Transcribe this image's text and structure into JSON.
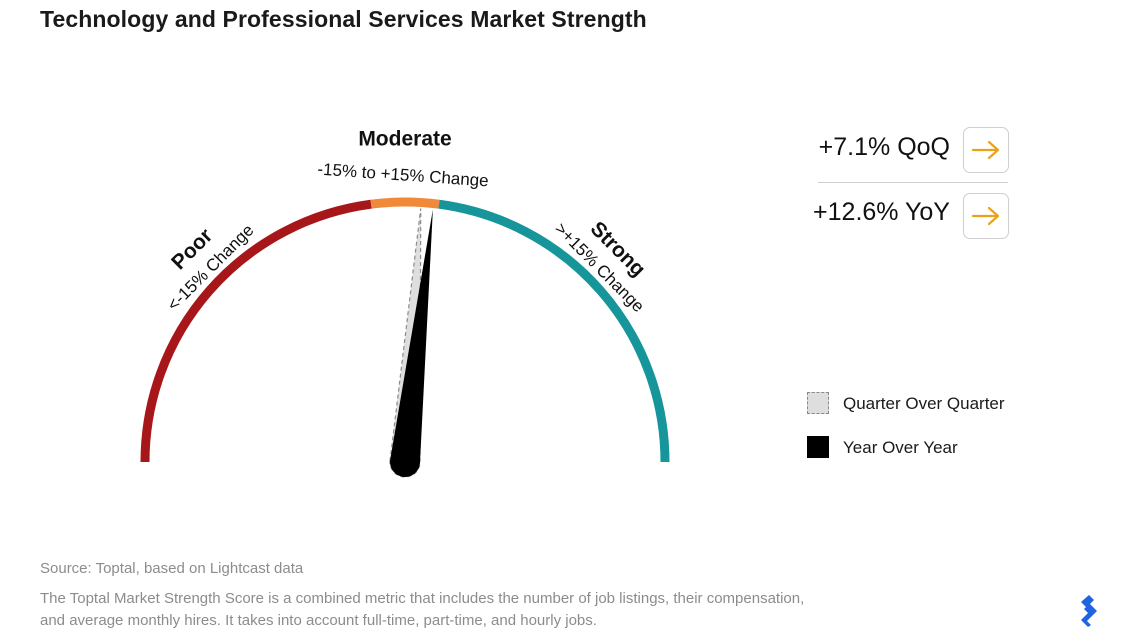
{
  "title": "Technology and Professional Services Market Strength",
  "chart_data": {
    "type": "gauge",
    "zones": [
      {
        "name": "Poor",
        "label": "<-15% Change",
        "range": [
          -180,
          -15
        ],
        "color": "#a7171a"
      },
      {
        "name": "Moderate",
        "label": "-15% to +15% Change",
        "range": [
          -15,
          15
        ],
        "color": "#f08a3a"
      },
      {
        "name": "Strong",
        "label": ">+15% Change",
        "range": [
          15,
          180
        ],
        "color": "#16969a"
      }
    ],
    "series": [
      {
        "name": "Quarter Over Quarter",
        "value": 7.1,
        "color": "#dedede"
      },
      {
        "name": "Year Over Year",
        "value": 12.6,
        "color": "#000000"
      }
    ]
  },
  "stats": {
    "qoq": "+7.1% QoQ",
    "yoy": "+12.6% YoY",
    "arrow_color": "#e9a317"
  },
  "legend": {
    "qoq": "Quarter Over Quarter",
    "yoy": "Year Over Year"
  },
  "footer": {
    "source": "Source: Toptal, based on Lightcast data",
    "note": "The Toptal Market Strength Score is a combined metric that includes the number of job listings, their compensation, and average monthly hires. It takes into account full-time, part-time, and hourly jobs."
  },
  "logo": {
    "name": "toptal-logo",
    "color": "#1f64e0"
  }
}
